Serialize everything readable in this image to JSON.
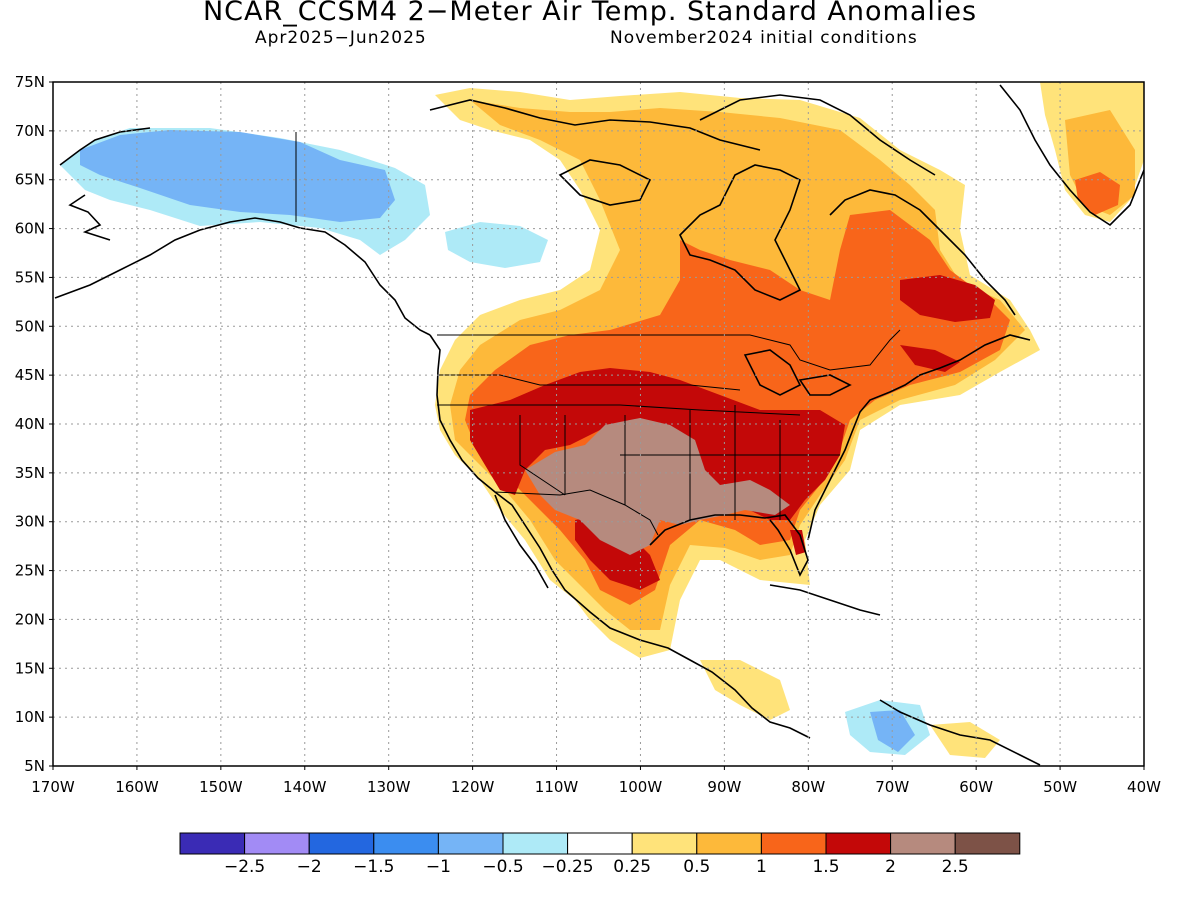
{
  "title": "NCAR_CCSM4 2−Meter Air Temp. Standard Anomalies",
  "period": "Apr2025−Jun2025",
  "init": "November2024 initial conditions",
  "lat_ticks": [
    "75N",
    "70N",
    "65N",
    "60N",
    "55N",
    "50N",
    "45N",
    "40N",
    "35N",
    "30N",
    "25N",
    "20N",
    "15N",
    "10N",
    "5N"
  ],
  "lon_ticks": [
    "170W",
    "160W",
    "150W",
    "140W",
    "130W",
    "120W",
    "110W",
    "100W",
    "90W",
    "80W",
    "70W",
    "60W",
    "50W",
    "40W"
  ],
  "colorbar": {
    "colors": [
      "#3a2bb5",
      "#a28bf5",
      "#2367e0",
      "#3b8df0",
      "#75b4f6",
      "#aeeaf7",
      "#ffffff",
      "#ffe37a",
      "#fdb93a",
      "#f8651a",
      "#c30808",
      "#b68a7e",
      "#7d5247"
    ],
    "labels": [
      "−2.5",
      "−2",
      "−1.5",
      "−1",
      "−0.5",
      "−0.25",
      "0.25",
      "0.5",
      "1",
      "1.5",
      "2",
      "2.5"
    ]
  },
  "map": {
    "lon_range": [
      -170,
      -40
    ],
    "lat_range": [
      5,
      75
    ],
    "grid": "dotted"
  }
}
